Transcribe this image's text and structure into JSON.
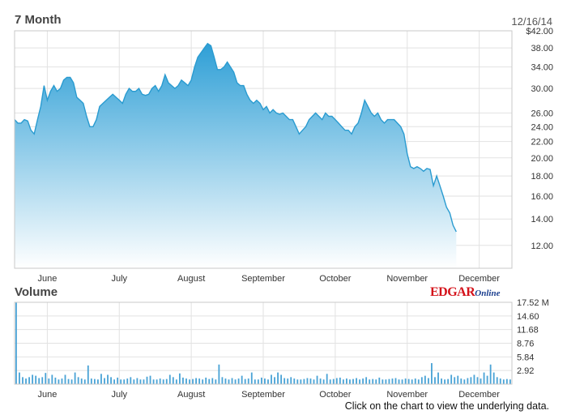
{
  "header": {
    "price_title": "7 Month",
    "date": "12/16/14",
    "volume_title": "Volume",
    "logo_edgar": "EDGAR",
    "logo_online": "Online",
    "footnote": "Click on the chart to view the underlying data."
  },
  "colors": {
    "line": "#2a9bd0",
    "fill_top": "#2e9fd6",
    "fill_bottom": "#ffffff",
    "volume_bar": "#4aa3d6",
    "grid": "#e2e2e2",
    "frame": "#c8c8c8"
  },
  "chart_data": [
    {
      "type": "area",
      "title": "7 Month",
      "y_scale": "log",
      "ylim": [
        10.5,
        42
      ],
      "y_ticks": [
        12,
        14,
        16,
        18,
        20,
        22,
        24,
        26,
        30,
        34,
        38,
        42
      ],
      "y_tick_labels": [
        "12.00",
        "14.00",
        "16.00",
        "18.00",
        "20.00",
        "22.00",
        "24.00",
        "26.00",
        "30.00",
        "34.00",
        "38.00",
        "$42.00"
      ],
      "months": [
        "June",
        "July",
        "August",
        "September",
        "October",
        "November",
        "December"
      ],
      "month_day_index": [
        10,
        32,
        54,
        76,
        98,
        120,
        142
      ],
      "x_range": [
        0,
        152
      ],
      "grid": true,
      "series": [
        {
          "values": [
            25,
            24.5,
            24.5,
            25,
            24.8,
            23.5,
            23,
            25,
            27,
            30.5,
            28,
            29.5,
            30.5,
            29.5,
            30,
            31.5,
            32,
            32,
            31,
            28.5,
            28,
            27.5,
            25.5,
            24,
            24,
            25,
            27,
            27.5,
            28,
            28.5,
            29,
            28.5,
            28,
            27.5,
            29,
            30,
            29.5,
            29.5,
            30,
            29,
            28.8,
            29,
            30,
            30.5,
            29.5,
            30.5,
            32.5,
            31,
            30.5,
            30,
            30.5,
            31.5,
            31,
            30.5,
            31.5,
            34,
            36,
            37,
            38,
            39,
            38.5,
            36,
            33.5,
            33.5,
            34,
            35,
            34,
            33,
            31,
            30.5,
            30.5,
            29,
            28,
            27.5,
            28,
            27.5,
            26.5,
            27,
            26,
            26.5,
            26,
            25.8,
            26,
            25.5,
            25,
            25,
            24,
            23,
            23.5,
            24,
            25,
            25.5,
            26,
            25.5,
            25,
            26,
            25.5,
            25.5,
            25,
            24.5,
            24,
            23.5,
            23.5,
            23,
            24,
            24.5,
            26,
            28,
            27,
            26,
            25.5,
            26,
            25,
            24.5,
            25,
            25,
            25,
            24.5,
            24,
            23,
            20.5,
            19,
            18.8,
            19,
            18.8,
            18.5,
            18.8,
            18.7,
            17,
            18,
            17,
            16,
            15,
            14.5,
            13.5,
            13
          ]
        }
      ]
    },
    {
      "type": "bar",
      "title": "Volume",
      "ylim": [
        0,
        17.52
      ],
      "y_ticks": [
        2.92,
        5.84,
        8.76,
        11.68,
        14.6,
        17.52
      ],
      "y_tick_labels": [
        "2.92",
        "5.84",
        "8.76",
        "11.68",
        "14.60",
        "17.52 M"
      ],
      "y_unit": "M",
      "months": [
        "June",
        "July",
        "August",
        "September",
        "October",
        "November",
        "December"
      ],
      "month_day_index": [
        10,
        32,
        54,
        76,
        98,
        120,
        142
      ],
      "x_range": [
        0,
        152
      ],
      "series": [
        {
          "values": [
            17.5,
            2.5,
            1.5,
            1.2,
            1.5,
            2,
            1.8,
            1.3,
            1.5,
            2.4,
            1.2,
            2,
            1.4,
            1,
            1.2,
            2,
            1.1,
            1,
            2.5,
            1.5,
            1.2,
            1,
            4,
            1.2,
            1.1,
            1,
            2.2,
            1.3,
            2,
            1.5,
            1,
            1.4,
            1,
            1,
            1.2,
            1.5,
            1,
            1.3,
            1,
            1,
            1.6,
            1.8,
            1,
            1,
            1.2,
            1,
            1.1,
            2,
            1.5,
            1,
            2.3,
            1.4,
            1.2,
            1,
            1.1,
            1.3,
            1.2,
            1,
            1.4,
            1.1,
            1.3,
            1,
            4.2,
            1.5,
            1.2,
            1,
            1.3,
            1,
            1.2,
            1.8,
            1.1,
            1.2,
            2.5,
            1,
            1,
            1.4,
            1.2,
            1,
            2,
            1.5,
            2.5,
            2,
            1.3,
            1.2,
            1.5,
            1.2,
            1,
            1,
            1.1,
            1.3,
            1.2,
            1,
            1.8,
            1.2,
            1,
            2.2,
            1,
            1.1,
            1.3,
            1.4,
            1,
            1.2,
            1,
            1.1,
            1.3,
            1,
            1.2,
            1.5,
            1,
            1.1,
            1,
            1.4,
            1,
            1,
            1.1,
            1.2,
            1.3,
            1,
            1,
            1.2,
            1.1,
            1,
            1.2,
            1,
            1.5,
            1.8,
            1.3,
            4.5,
            1.5,
            2.5,
            1.2,
            1,
            1.1,
            2,
            1.5,
            1.8,
            1.2,
            1,
            1.3,
            1.5,
            2,
            1.5,
            1.2,
            2.5,
            1.8,
            4.2,
            2.5,
            1.5,
            1.2,
            1,
            1.1,
            1
          ]
        }
      ]
    }
  ]
}
